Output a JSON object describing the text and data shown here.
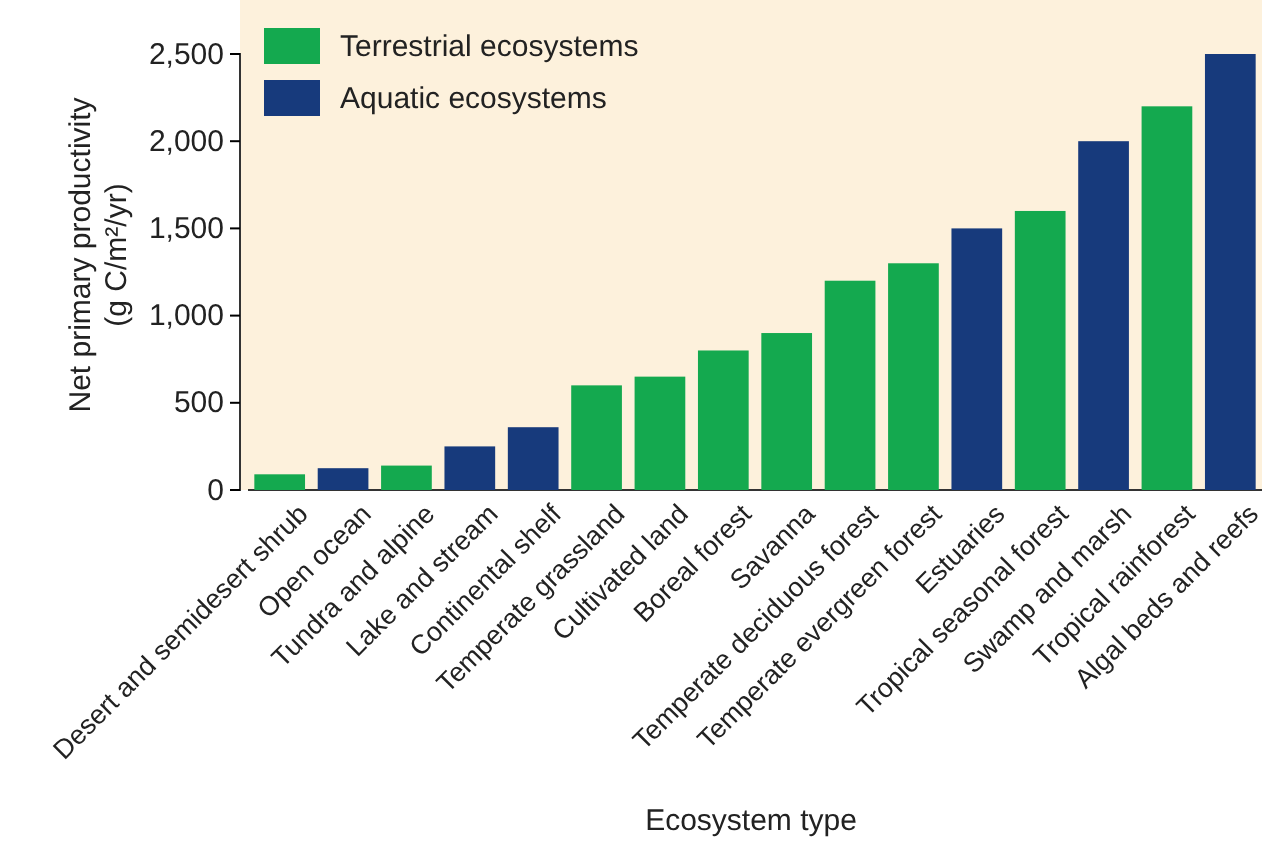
{
  "chart_data": {
    "type": "bar",
    "xlabel": "Ecosystem type",
    "ylabel": "Net primary productivity\n(g C/m²/yr)",
    "categories": [
      "Desert and semidesert shrub",
      "Open ocean",
      "Tundra and alpine",
      "Lake and stream",
      "Continental shelf",
      "Temperate grassland",
      "Cultivated land",
      "Boreal forest",
      "Savanna",
      "Temperate deciduous forest",
      "Temperate evergreen forest",
      "Estuaries",
      "Tropical seasonal forest",
      "Swamp and marsh",
      "Tropical rainforest",
      "Algal beds and reefs"
    ],
    "series": [
      {
        "name": "Terrestrial ecosystems",
        "color": "#14a94f",
        "values": [
          90,
          null,
          140,
          null,
          null,
          600,
          650,
          800,
          900,
          1200,
          1300,
          null,
          1600,
          null,
          2200,
          null
        ]
      },
      {
        "name": "Aquatic ecosystems",
        "color": "#173a7c",
        "values": [
          null,
          125,
          null,
          250,
          360,
          null,
          null,
          null,
          null,
          null,
          null,
          1500,
          null,
          2000,
          null,
          2500
        ]
      }
    ],
    "ylim": [
      0,
      2500
    ],
    "yticks": [
      0,
      500,
      {
        "value": 1000,
        "label": "1,000"
      },
      {
        "value": 1500,
        "label": "1,500"
      },
      {
        "value": 2000,
        "label": "2,000"
      },
      {
        "value": 2500,
        "label": "2,500"
      }
    ],
    "grid": false,
    "legend": "top left"
  }
}
